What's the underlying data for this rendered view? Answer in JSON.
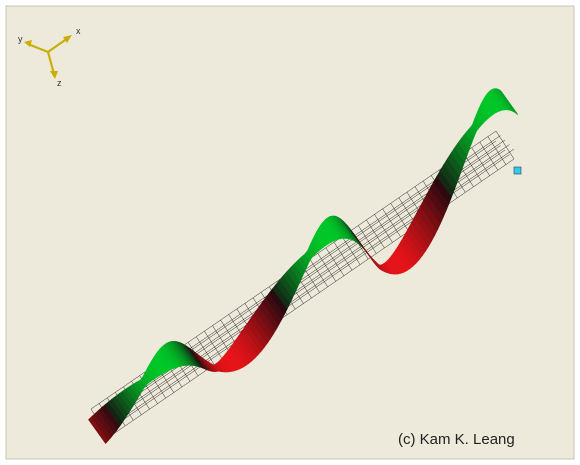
{
  "triad": {
    "x": "x",
    "y": "y",
    "z": "z"
  },
  "credit": "(c) Kam K. Leang"
}
